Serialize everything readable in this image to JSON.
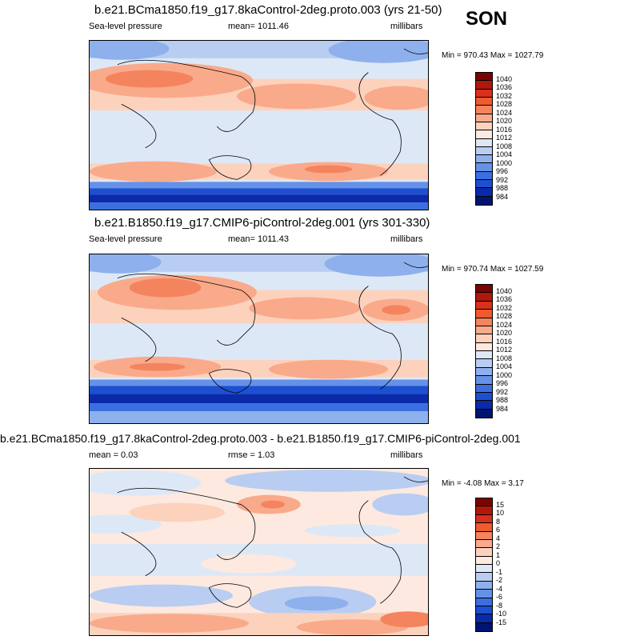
{
  "season": "SON",
  "panels": [
    {
      "title": "b.e21.BCma1850.f19_g17.8kaControl-2deg.proto.003 (yrs 21-50)",
      "left_label": "Sea-level pressure",
      "center_label": "mean= 1011.46",
      "right_label": "millibars",
      "minmax": "Min = 970.43 Max = 1027.79",
      "colorbar": {
        "labels": [
          "1040",
          "1036",
          "1032",
          "1028",
          "1024",
          "1020",
          "1016",
          "1012",
          "1008",
          "1004",
          "1000",
          "996",
          "992",
          "988",
          "984"
        ],
        "colors": [
          "#7a0403",
          "#b2170b",
          "#d7301f",
          "#ef5a2e",
          "#f4845e",
          "#f9aa8b",
          "#fcd2bd",
          "#fde9df",
          "#dde8f7",
          "#b8cdf1",
          "#8eb0ec",
          "#6591e6",
          "#3b6fe0",
          "#1d4fd1",
          "#0a2aa9",
          "#001470"
        ]
      }
    },
    {
      "title": "b.e21.B1850.f19_g17.CMIP6-piControl-2deg.001 (yrs 301-330)",
      "left_label": "Sea-level pressure",
      "center_label": "mean= 1011.43",
      "right_label": "millibars",
      "minmax": "Min = 970.74 Max = 1027.59",
      "colorbar": {
        "labels": [
          "1040",
          "1036",
          "1032",
          "1028",
          "1024",
          "1020",
          "1016",
          "1012",
          "1008",
          "1004",
          "1000",
          "996",
          "992",
          "988",
          "984"
        ],
        "colors": [
          "#7a0403",
          "#b2170b",
          "#d7301f",
          "#ef5a2e",
          "#f4845e",
          "#f9aa8b",
          "#fcd2bd",
          "#fde9df",
          "#dde8f7",
          "#b8cdf1",
          "#8eb0ec",
          "#6591e6",
          "#3b6fe0",
          "#1d4fd1",
          "#0a2aa9",
          "#001470"
        ]
      }
    },
    {
      "title": "b.e21.BCma1850.f19_g17.8kaControl-2deg.proto.003 - b.e21.B1850.f19_g17.CMIP6-piControl-2deg.001",
      "left_label": "mean =  0.03",
      "center_label": "rmse =  1.03",
      "right_label": "millibars",
      "minmax": "Min =  -4.08 Max =  3.17",
      "colorbar": {
        "labels": [
          "15",
          "10",
          "8",
          "6",
          "4",
          "2",
          "1",
          "0",
          "-1",
          "-2",
          "-4",
          "-6",
          "-8",
          "-10",
          "-15"
        ],
        "colors": [
          "#7a0403",
          "#b2170b",
          "#d7301f",
          "#ef5a2e",
          "#f4845e",
          "#f9aa8b",
          "#fcd2bd",
          "#fde9df",
          "#dde8f7",
          "#b8cdf1",
          "#8eb0ec",
          "#6591e6",
          "#3b6fe0",
          "#1d4fd1",
          "#0a2aa9",
          "#001470"
        ]
      }
    }
  ]
}
